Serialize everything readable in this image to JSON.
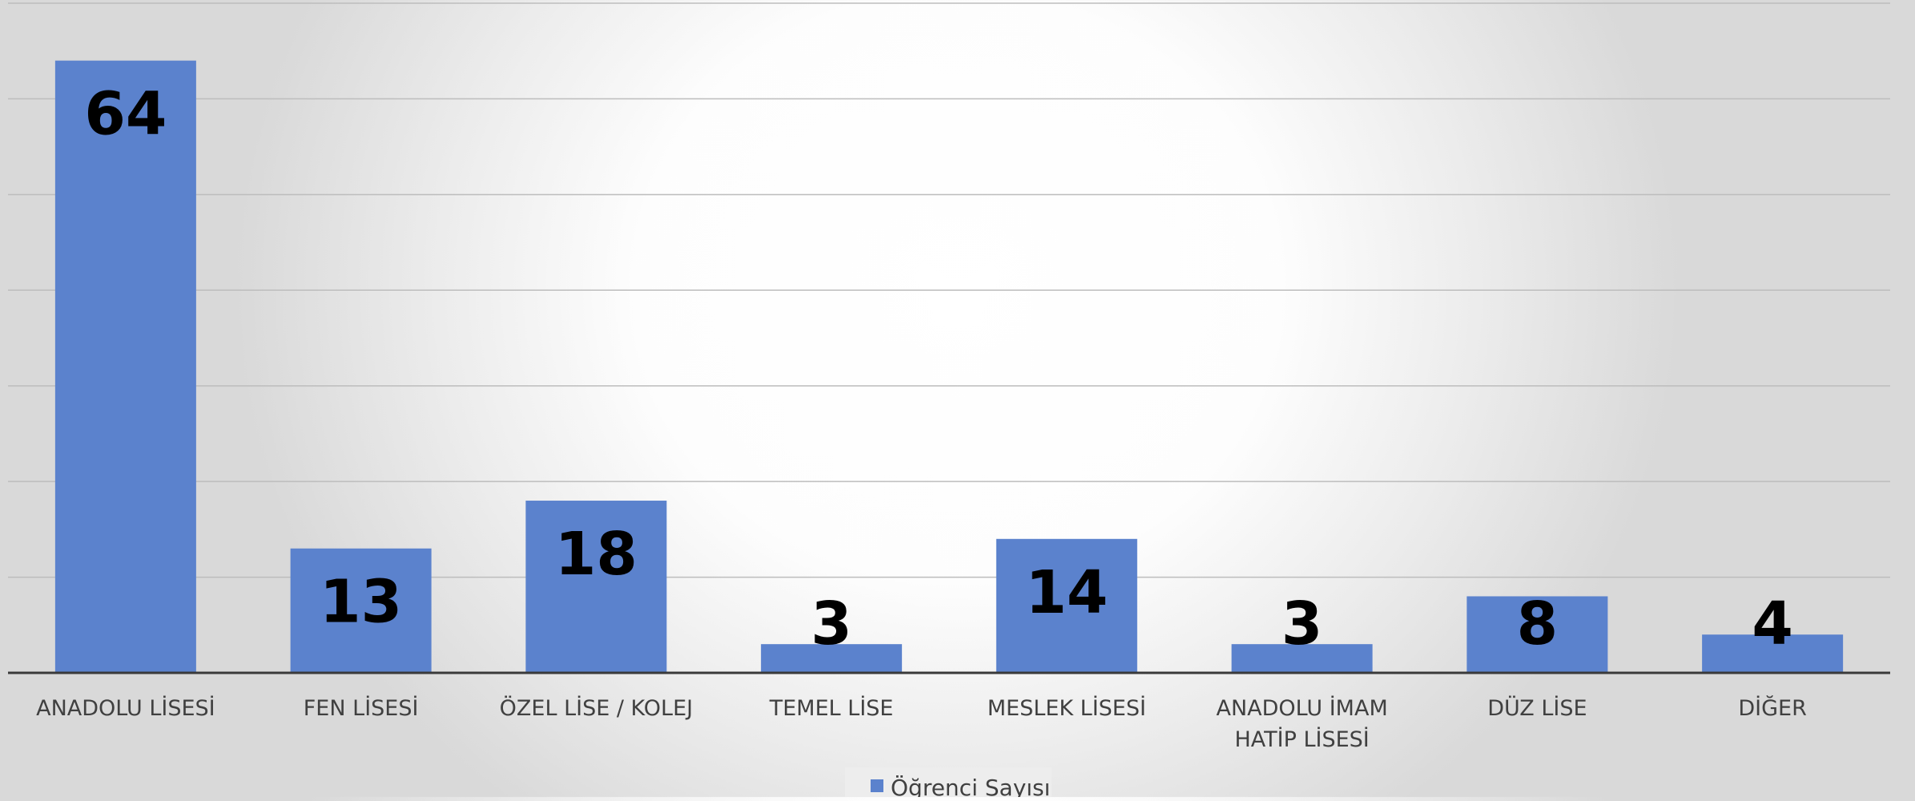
{
  "chart_data": {
    "type": "bar",
    "categories": [
      "ANADOLU LİSESİ",
      "FEN LİSESİ",
      "ÖZEL LİSE / KOLEJ",
      "TEMEL LİSE",
      "MESLEK LİSESİ",
      "ANADOLU İMAM HATİP LİSESİ",
      "DÜZ LİSE",
      "DİĞER"
    ],
    "category_lines": [
      [
        "ANADOLU LİSESİ"
      ],
      [
        "FEN LİSESİ"
      ],
      [
        "ÖZEL LİSE / KOLEJ"
      ],
      [
        "TEMEL LİSE"
      ],
      [
        "MESLEK LİSESİ"
      ],
      [
        "ANADOLU İMAM",
        "HATİP LİSESİ"
      ],
      [
        "DÜZ LİSE"
      ],
      [
        "DİĞER"
      ]
    ],
    "series": [
      {
        "name": "Öğrenci Sayısı",
        "values": [
          64,
          13,
          18,
          3,
          14,
          3,
          8,
          4
        ],
        "color": "#5b82cd"
      }
    ],
    "ylim": [
      0,
      70
    ],
    "y_gridline_step": 10,
    "grid": true,
    "legend": "bottom-center",
    "data_labels": true,
    "colors": {
      "bar": "#5b82cd",
      "gridline": "#bdbdbd",
      "axis": "#3a3a3a",
      "category_text": "#404040",
      "data_label": "#000000"
    }
  }
}
